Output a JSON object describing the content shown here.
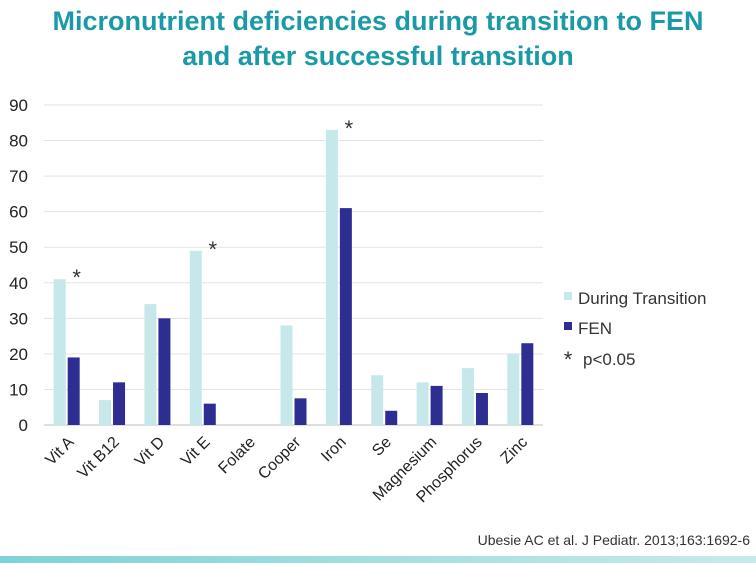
{
  "slide": {
    "title_line1": "Micronutrient deficiencies during transition to FEN",
    "title_line2": "and after successful transition",
    "citation": "Ubesie AC et al. J Pediatr. 2013;163:1692-6"
  },
  "chart_data": {
    "type": "bar",
    "title": "",
    "xlabel": "",
    "ylabel": "",
    "ylim": [
      0,
      90
    ],
    "yticks": [
      0,
      10,
      20,
      30,
      40,
      50,
      60,
      70,
      80,
      90
    ],
    "grid": true,
    "legend_position": "right",
    "categories": [
      "Vit A",
      "Vit B12",
      "Vit D",
      "Vit E",
      "Folate",
      "Cooper",
      "Iron",
      "Se",
      "Magnesium",
      "Phosphorus",
      "Zinc"
    ],
    "series": [
      {
        "name": "During Transition",
        "color": "#c6e8ea",
        "values": [
          41,
          7,
          34,
          49,
          0,
          28,
          83,
          14,
          12,
          16,
          20
        ]
      },
      {
        "name": "FEN",
        "color": "#2e2d91",
        "values": [
          19,
          12,
          30,
          6,
          0,
          7.5,
          61,
          4,
          11,
          9,
          23
        ]
      }
    ],
    "significance_marker": "*",
    "significant_categories": [
      "Vit A",
      "Vit E",
      "Iron"
    ],
    "legend_note": "p<0.05"
  }
}
